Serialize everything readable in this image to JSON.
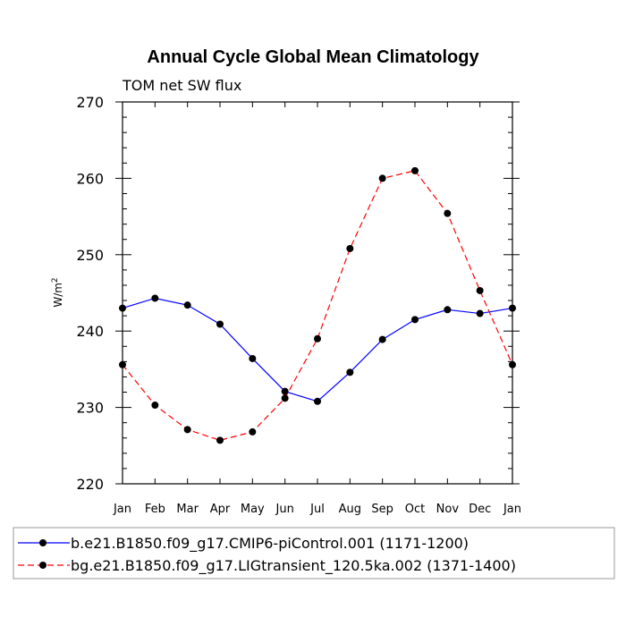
{
  "chart_data": {
    "type": "line",
    "title": "Annual Cycle Global Mean Climatology",
    "subtitle": "TOM net SW flux",
    "ylabel": "W/m",
    "ylabel_superscript": "2",
    "xlabel": "",
    "categories": [
      "Jan",
      "Feb",
      "Mar",
      "Apr",
      "May",
      "Jun",
      "Jul",
      "Aug",
      "Sep",
      "Oct",
      "Nov",
      "Dec",
      "Jan"
    ],
    "ylim": [
      220,
      270
    ],
    "yticks": [
      220,
      230,
      240,
      250,
      260,
      270
    ],
    "ytick_labels": [
      "220",
      "230",
      "240",
      "250",
      "260",
      "270"
    ],
    "series": [
      {
        "name": "b.e21.B1850.f09_g17.CMIP6-piControl.001 (1171-1200)",
        "color": "#0000ff",
        "dash": "solid",
        "marker": "dot",
        "values": [
          243.0,
          244.3,
          243.4,
          240.9,
          236.4,
          232.1,
          230.8,
          234.6,
          238.9,
          241.5,
          242.8,
          242.3,
          243.0
        ]
      },
      {
        "name": "bg.e21.B1850.f09_g17.LIGtransient_120.5ka.002 (1371-1400)",
        "color": "#ff0000",
        "dash": "dashed",
        "marker": "dot",
        "values": [
          235.6,
          230.3,
          227.1,
          225.7,
          226.8,
          231.2,
          239.0,
          250.8,
          260.0,
          261.0,
          255.4,
          245.3,
          235.6
        ]
      }
    ],
    "legend": "bottom"
  }
}
